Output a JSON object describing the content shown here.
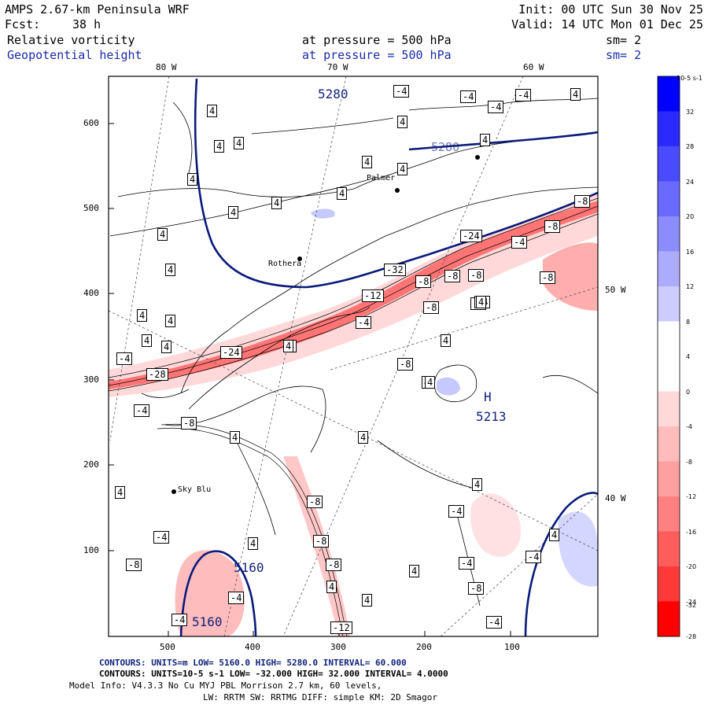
{
  "header": {
    "model": "AMPS 2.67-km Peninsula WRF",
    "fcst_label": "Fcst:",
    "fcst_value": "38 h",
    "init": "Init: 00 UTC Sun 30 Nov 25",
    "valid": "Valid: 14 UTC Mon 01 Dec 25",
    "field1": "Relative vorticity",
    "field1_pressure": "at pressure =  500 hPa",
    "field1_sm": "sm= 2",
    "field2": "Geopotential height",
    "field2_pressure": "at pressure =  500 hPa",
    "field2_sm": "sm= 2"
  },
  "map": {
    "lon_top": [
      "80 W",
      "70 W",
      "60 W"
    ],
    "lon_right": [
      "50 W",
      "40 W"
    ],
    "y_ticks": [
      "600",
      "500",
      "400",
      "300",
      "200",
      "100"
    ],
    "x_ticks": [
      "500",
      "400",
      "300",
      "200",
      "100"
    ],
    "height_labels": [
      "5280",
      "5280",
      "5160",
      "5160",
      "5213"
    ],
    "high_marker": "H",
    "places": [
      "Palmer",
      "Rothera",
      "Sky Blu"
    ],
    "vort_labels": [
      "-4",
      "-4",
      "-4",
      "-4",
      "4",
      "4",
      "4",
      "4",
      "4",
      "4",
      "4",
      "4",
      "4",
      "4",
      "4",
      "4",
      "4",
      "4",
      "4",
      "4",
      "4",
      "4",
      "-8",
      "-8",
      "-8",
      "-8",
      "-8",
      "-8",
      "-8",
      "-24",
      "-32",
      "-12",
      "-24",
      "-28",
      "-4",
      "-4",
      "-8",
      "-4",
      "-4",
      "4",
      "4",
      "-4",
      "4",
      "-4",
      "-8",
      "-8",
      "-8",
      "-8",
      "-12",
      "4",
      "4",
      "4",
      "-4",
      "-4",
      "-8",
      "-4",
      "4",
      "-4",
      "-4",
      "-8",
      "-4",
      "-4",
      "4",
      "4",
      "4",
      "4",
      "4",
      "4",
      "4",
      "4",
      "4"
    ]
  },
  "colorbar": {
    "unit": "10-5 s-1",
    "labels": [
      "32",
      "28",
      "24",
      "20",
      "16",
      "12",
      "8",
      "4",
      "0",
      "-4",
      "-8",
      "-12",
      "-16",
      "-20",
      "-24",
      "-28",
      "-32"
    ]
  },
  "footer": {
    "line1": "CONTOURS: UNITS=m  LOW=  5160.0      HIGH=  5280.0      INTERVAL=  60.000",
    "line2": "CONTOURS: UNITS=10-5 s-1  LOW= -32.000      HIGH= 32.000      INTERVAL=  4.0000",
    "line3": "Model Info: V4.3.3   No Cu   MYJ PBL  Morrison          2.7 km,  60 levels,",
    "line4": "LW: RRTM SW: RRTMG   DIFF: simple KM: 2D Smagor"
  },
  "colors": {
    "height_contour": "#0a1a7a",
    "positive": "#1010e0",
    "negative": "#ff1010"
  }
}
